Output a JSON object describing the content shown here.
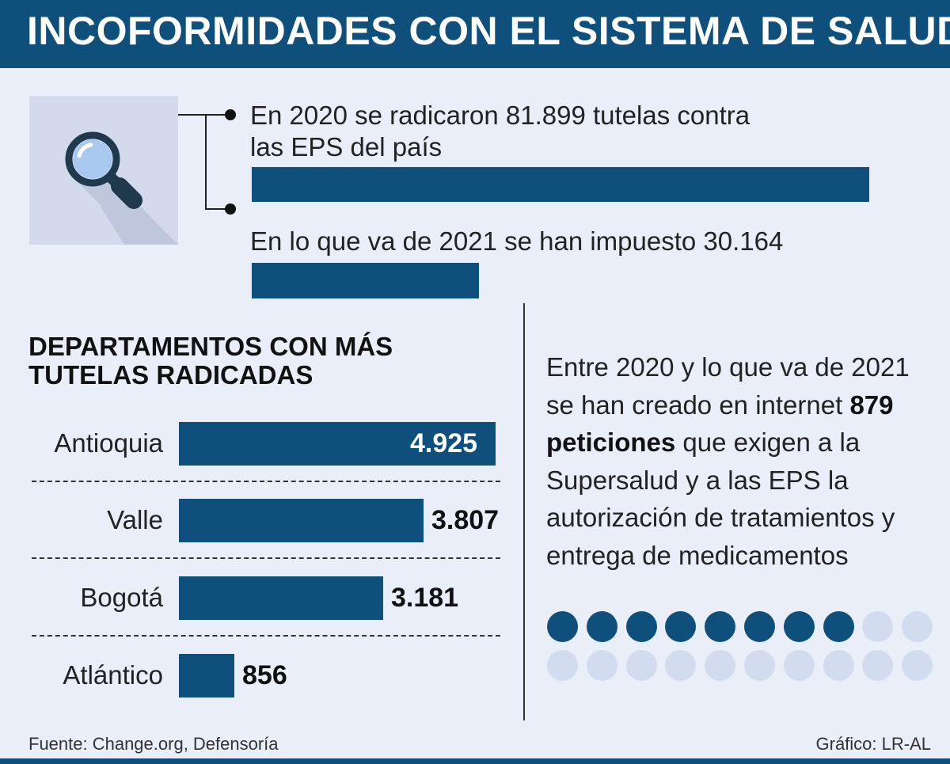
{
  "header": {
    "title": "INCOFORMIDADES CON EL SISTEMA DE SALUD"
  },
  "icon": {
    "name": "magnifier-icon"
  },
  "stats": [
    {
      "text_line1": "En 2020 se radicaron 81.899 tutelas contra",
      "text_line2": "las EPS del país",
      "value": 81899
    },
    {
      "text_line1": "En lo que va de 2021 se han impuesto 30.164",
      "text_line2": "",
      "value": 30164
    }
  ],
  "departments": {
    "title_line1": "DEPARTAMENTOS CON MÁS",
    "title_line2": "TUTELAS RADICADAS"
  },
  "chart_data": {
    "type": "bar",
    "orientation": "horizontal",
    "title": "DEPARTAMENTOS CON MÁS TUTELAS RADICADAS",
    "categories": [
      "Antioquia",
      "Valle",
      "Bogotá",
      "Atlántico"
    ],
    "values": [
      4925,
      3807,
      3181,
      856
    ],
    "value_labels": [
      "4.925",
      "3.807",
      "3.181",
      "856"
    ],
    "xlim": [
      0,
      4925
    ]
  },
  "petitions": {
    "text_before": "Entre 2020 y lo que va de 2021 se han creado en internet ",
    "text_bold": "879 peticiones",
    "text_after": " que exigen a la Supersalud y a las EPS la autorización de tratamientos y entrega de medicamentos",
    "filled_dots": 8,
    "total_dots": 20,
    "filled_color": "#0f4f7c",
    "empty_color": "#d3dcef"
  },
  "footer": {
    "source": "Fuente: Change.org, Defensoría",
    "credit": "Gráfico: LR-AL"
  },
  "colors": {
    "accent": "#0f4f7c",
    "background": "#e9eef8"
  }
}
